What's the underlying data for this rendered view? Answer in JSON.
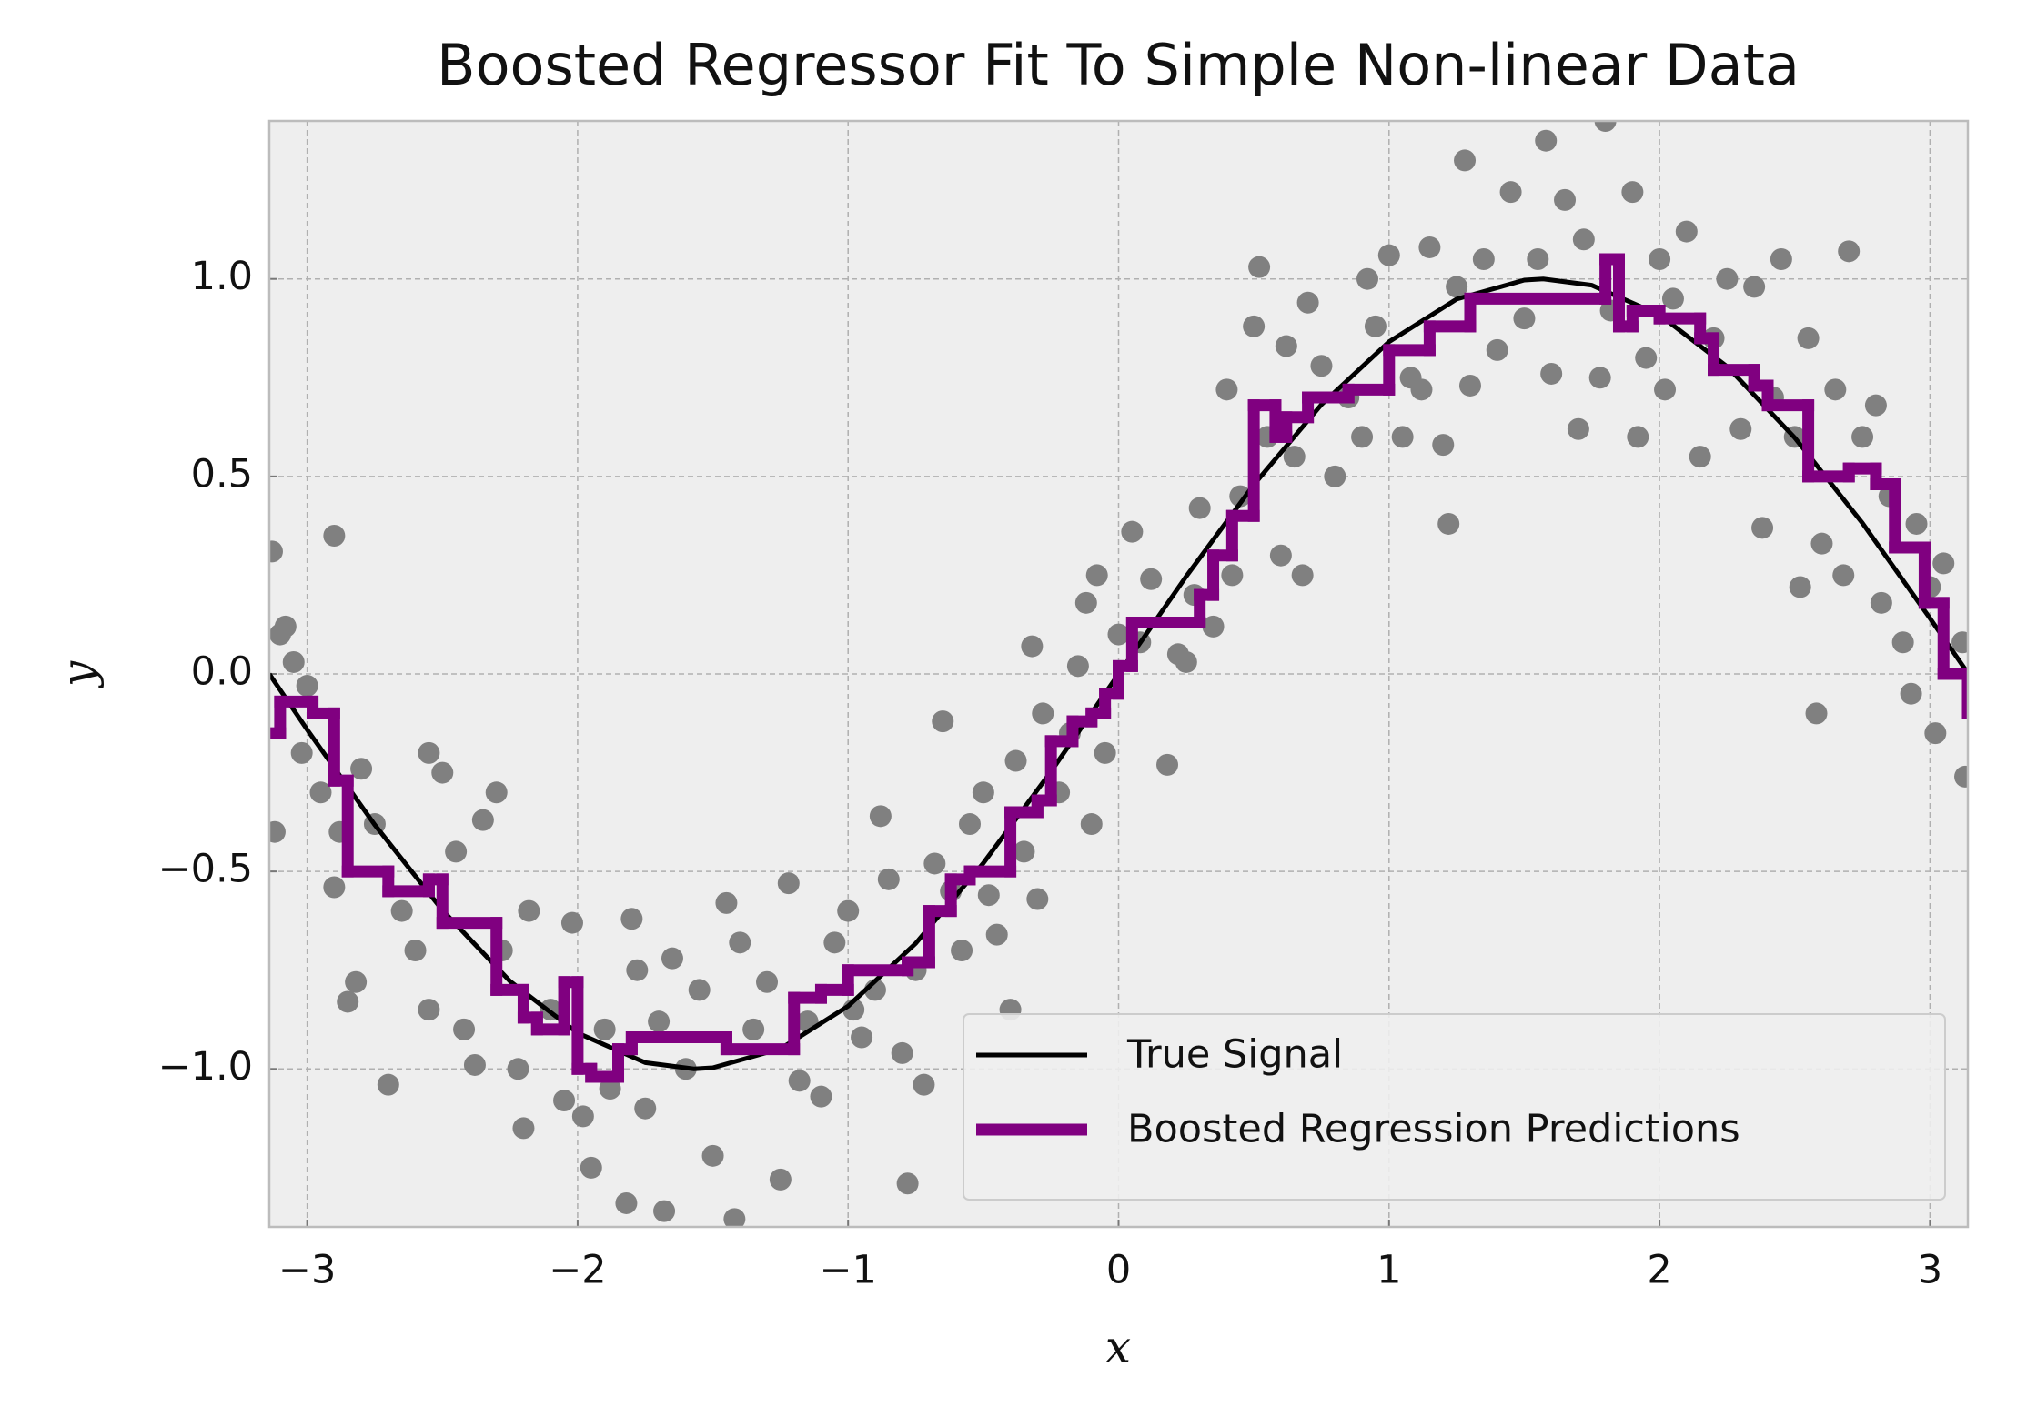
{
  "chart_data": {
    "type": "line",
    "title": "Boosted Regressor Fit To Simple Non-linear Data",
    "xlabel": "x",
    "ylabel": "y",
    "xlim": [
      -3.14,
      3.14
    ],
    "ylim": [
      -1.4,
      1.4
    ],
    "xticks": [
      {
        "value": -3,
        "label": "−3"
      },
      {
        "value": -2,
        "label": "−2"
      },
      {
        "value": -1,
        "label": "−1"
      },
      0,
      1,
      2,
      3
    ],
    "yticks": [
      {
        "value": -1,
        "label": "−1.0"
      },
      {
        "value": -0.5,
        "label": "−0.5"
      },
      {
        "value": 0,
        "label": "0.0"
      },
      0.5,
      {
        "value": 1,
        "label": "1.0"
      }
    ],
    "grid": true,
    "legend": "lower right",
    "scatter": {
      "color": "#808080",
      "x": [
        -3.13,
        -3.12,
        -3.1,
        -3.08,
        -3.05,
        -3.0,
        -3.02,
        -2.9,
        -2.95,
        -2.88,
        -2.85,
        -2.82,
        -2.9,
        -2.8,
        -2.75,
        -2.7,
        -2.65,
        -2.6,
        -2.55,
        -2.55,
        -2.5,
        -2.45,
        -2.42,
        -2.38,
        -2.35,
        -2.3,
        -2.28,
        -2.22,
        -2.2,
        -2.18,
        -2.1,
        -2.05,
        -2.02,
        -1.98,
        -1.95,
        -1.9,
        -1.88,
        -1.82,
        -1.8,
        -1.78,
        -1.75,
        -1.7,
        -1.68,
        -1.65,
        -1.6,
        -1.55,
        -1.5,
        -1.45,
        -1.42,
        -1.4,
        -1.35,
        -1.3,
        -1.25,
        -1.22,
        -1.18,
        -1.15,
        -1.1,
        -1.05,
        -1.0,
        -0.98,
        -0.95,
        -0.9,
        -0.88,
        -0.85,
        -0.8,
        -0.78,
        -0.75,
        -0.72,
        -0.68,
        -0.65,
        -0.62,
        -0.58,
        -0.55,
        -0.5,
        -0.48,
        -0.45,
        -0.4,
        -0.38,
        -0.35,
        -0.3,
        -0.32,
        -0.28,
        -0.22,
        -0.18,
        -0.15,
        -0.12,
        -0.1,
        -0.08,
        -0.05,
        0.0,
        0.05,
        0.08,
        0.12,
        0.18,
        0.22,
        0.25,
        0.28,
        0.3,
        0.35,
        0.4,
        0.42,
        0.45,
        0.5,
        0.52,
        0.55,
        0.6,
        0.62,
        0.65,
        0.68,
        0.7,
        0.75,
        0.8,
        0.85,
        0.9,
        0.92,
        0.95,
        1.0,
        1.05,
        1.08,
        1.12,
        1.15,
        1.2,
        1.22,
        1.25,
        1.28,
        1.3,
        1.35,
        1.4,
        1.45,
        1.5,
        1.55,
        1.58,
        1.6,
        1.65,
        1.7,
        1.72,
        1.78,
        1.8,
        1.82,
        1.9,
        1.92,
        1.95,
        2.0,
        2.02,
        2.05,
        2.1,
        2.15,
        2.2,
        2.25,
        2.3,
        2.35,
        2.38,
        2.42,
        2.45,
        2.5,
        2.52,
        2.55,
        2.58,
        2.6,
        2.65,
        2.68,
        2.7,
        2.75,
        2.8,
        2.82,
        2.85,
        2.9,
        2.93,
        2.95,
        3.0,
        3.02,
        3.05,
        3.12,
        3.13
      ],
      "values": [
        0.31,
        -0.4,
        0.1,
        0.12,
        0.03,
        -0.03,
        -0.2,
        0.35,
        -0.3,
        -0.4,
        -0.83,
        -0.78,
        -0.54,
        -0.24,
        -0.38,
        -1.04,
        -0.6,
        -0.7,
        -0.85,
        -0.2,
        -0.25,
        -0.45,
        -0.9,
        -0.99,
        -0.37,
        -0.3,
        -0.7,
        -1.0,
        -1.15,
        -0.6,
        -0.85,
        -1.08,
        -0.63,
        -1.12,
        -1.25,
        -0.9,
        -1.05,
        -1.34,
        -0.62,
        -0.75,
        -1.1,
        -0.88,
        -1.36,
        -0.72,
        -1.0,
        -0.8,
        -1.22,
        -0.58,
        -1.38,
        -0.68,
        -0.9,
        -0.78,
        -1.28,
        -0.53,
        -1.03,
        -0.88,
        -1.07,
        -0.68,
        -0.6,
        -0.85,
        -0.92,
        -0.8,
        -0.36,
        -0.52,
        -0.96,
        -1.29,
        -0.75,
        -1.04,
        -0.48,
        -0.12,
        -0.55,
        -0.7,
        -0.38,
        -0.3,
        -0.56,
        -0.66,
        -0.85,
        -0.22,
        -0.45,
        -0.57,
        0.07,
        -0.1,
        -0.3,
        -0.15,
        0.02,
        0.18,
        -0.38,
        0.25,
        -0.2,
        0.1,
        0.36,
        0.08,
        0.24,
        -0.23,
        0.05,
        0.03,
        0.2,
        0.42,
        0.12,
        0.72,
        0.25,
        0.45,
        0.88,
        1.03,
        0.6,
        0.3,
        0.83,
        0.55,
        0.25,
        0.94,
        0.78,
        0.5,
        0.7,
        0.6,
        1.0,
        0.88,
        1.06,
        0.6,
        0.75,
        0.72,
        1.08,
        0.58,
        0.38,
        0.98,
        1.3,
        0.73,
        1.05,
        0.82,
        1.22,
        0.9,
        1.05,
        1.35,
        0.76,
        1.2,
        0.62,
        1.1,
        0.75,
        1.4,
        0.92,
        1.22,
        0.6,
        0.8,
        1.05,
        0.72,
        0.95,
        1.12,
        0.55,
        0.85,
        1.0,
        0.62,
        0.98,
        0.37,
        0.7,
        1.05,
        0.6,
        0.22,
        0.85,
        -0.1,
        0.33,
        0.72,
        0.25,
        1.07,
        0.6,
        0.68,
        0.18,
        0.45,
        0.08,
        -0.05,
        0.38,
        0.22,
        -0.15,
        0.28,
        0.08,
        -0.26
      ]
    },
    "series": [
      {
        "name": "True Signal",
        "color": "#000000",
        "x": [
          -3.14,
          -3.0,
          -2.75,
          -2.5,
          -2.25,
          -2.0,
          -1.75,
          -1.57,
          -1.5,
          -1.25,
          -1.0,
          -0.75,
          -0.5,
          -0.25,
          0.0,
          0.25,
          0.5,
          0.75,
          1.0,
          1.25,
          1.5,
          1.57,
          1.75,
          2.0,
          2.25,
          2.5,
          2.75,
          3.0,
          3.14
        ],
        "values": [
          0.0,
          -0.141,
          -0.382,
          -0.598,
          -0.778,
          -0.909,
          -0.984,
          -1.0,
          -0.997,
          -0.949,
          -0.841,
          -0.682,
          -0.479,
          -0.247,
          0.0,
          0.247,
          0.479,
          0.682,
          0.841,
          0.949,
          0.997,
          1.0,
          0.984,
          0.909,
          0.778,
          0.598,
          0.382,
          0.141,
          0.002
        ]
      },
      {
        "name": "Boosted Regression Predictions",
        "color": "#800080",
        "drawstyle": "steps-post",
        "x": [
          -3.14,
          -3.1,
          -2.98,
          -2.9,
          -2.85,
          -2.7,
          -2.55,
          -2.5,
          -2.3,
          -2.2,
          -2.15,
          -2.05,
          -2.0,
          -1.95,
          -1.85,
          -1.8,
          -1.45,
          -1.2,
          -1.1,
          -1.0,
          -0.78,
          -0.7,
          -0.62,
          -0.55,
          -0.4,
          -0.3,
          -0.25,
          -0.17,
          -0.1,
          -0.05,
          0.0,
          0.05,
          0.3,
          0.35,
          0.42,
          0.5,
          0.58,
          0.62,
          0.7,
          0.85,
          1.0,
          1.15,
          1.3,
          1.8,
          1.85,
          1.9,
          2.0,
          2.15,
          2.2,
          2.35,
          2.4,
          2.55,
          2.7,
          2.8,
          2.87,
          2.98,
          3.05,
          3.14
        ],
        "values": [
          -0.15,
          -0.07,
          -0.1,
          -0.27,
          -0.5,
          -0.55,
          -0.52,
          -0.63,
          -0.8,
          -0.87,
          -0.9,
          -0.78,
          -1.0,
          -1.02,
          -0.95,
          -0.92,
          -0.95,
          -0.82,
          -0.8,
          -0.75,
          -0.73,
          -0.6,
          -0.52,
          -0.5,
          -0.35,
          -0.32,
          -0.17,
          -0.12,
          -0.1,
          -0.05,
          0.02,
          0.13,
          0.2,
          0.3,
          0.4,
          0.68,
          0.6,
          0.65,
          0.7,
          0.72,
          0.82,
          0.88,
          0.95,
          1.05,
          0.88,
          0.92,
          0.9,
          0.85,
          0.77,
          0.73,
          0.68,
          0.5,
          0.52,
          0.48,
          0.32,
          0.18,
          0.0,
          -0.1
        ]
      }
    ]
  }
}
